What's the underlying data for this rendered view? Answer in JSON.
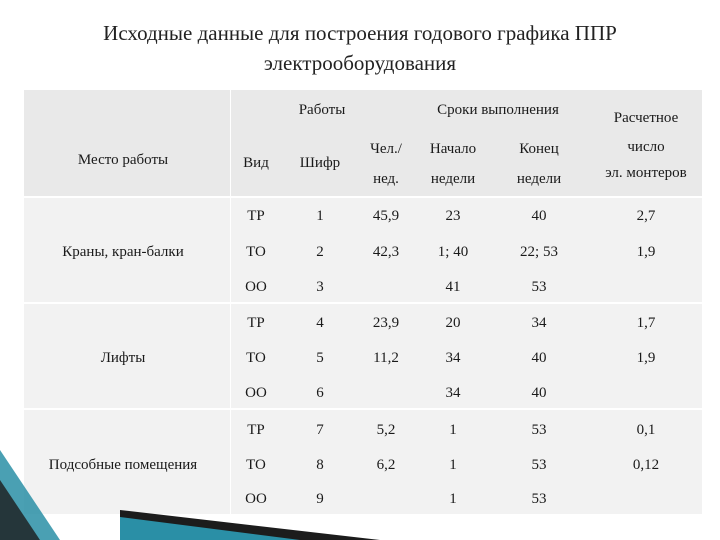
{
  "title": {
    "line1": "Исходные данные для построения годового графика ППР",
    "line2": "электрооборудования"
  },
  "headers": {
    "works": "Работы",
    "deadlines": "Сроки выполнения",
    "calc_line1": "Расчетное",
    "calc_line2": "число",
    "calc_line3": "эл. монтеров",
    "place": "Место работы",
    "type": "Вид",
    "code": "Шифр",
    "person_line1": "Чел./",
    "person_line2": "нед.",
    "start_line1": "Начало",
    "start_line2": "недели",
    "end_line1": "Конец",
    "end_line2": "недели"
  },
  "groups": [
    {
      "place": "Краны, кран-балки",
      "rows": [
        {
          "type": "ТР",
          "code": "1",
          "person": "45,9",
          "start": "23",
          "end": "40",
          "calc": "2,7"
        },
        {
          "type": "ТО",
          "code": "2",
          "person": "42,3",
          "start": "1; 40",
          "end": "22; 53",
          "calc": "1,9"
        },
        {
          "type": "ОО",
          "code": "3",
          "person": "",
          "start": "41",
          "end": "53",
          "calc": ""
        }
      ]
    },
    {
      "place": "Лифты",
      "rows": [
        {
          "type": "ТР",
          "code": "4",
          "person": "23,9",
          "start": "20",
          "end": "34",
          "calc": "1,7"
        },
        {
          "type": "ТО",
          "code": "5",
          "person": "11,2",
          "start": "34",
          "end": "40",
          "calc": "1,9"
        },
        {
          "type": "ОО",
          "code": "6",
          "person": "",
          "start": "34",
          "end": "40",
          "calc": ""
        }
      ]
    },
    {
      "place": "Подсобные помещения",
      "rows": [
        {
          "type": "ТР",
          "code": "7",
          "person": "5,2",
          "start": "1",
          "end": "53",
          "calc": "0,1"
        },
        {
          "type": "ТО",
          "code": "8",
          "person": "6,2",
          "start": "1",
          "end": "53",
          "calc": "0,12"
        },
        {
          "type": "ОО",
          "code": "9",
          "person": "",
          "start": "1",
          "end": "53",
          "calc": ""
        }
      ]
    }
  ],
  "colors": {
    "table_bg": "#f2f2f2",
    "deco_teal": "#2a8fa6",
    "deco_dark": "#1c1c1c"
  }
}
